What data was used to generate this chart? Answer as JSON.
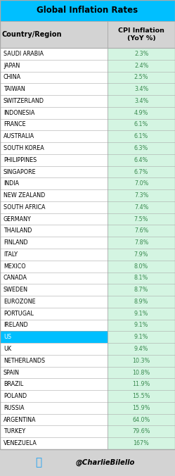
{
  "title": "Global Inflation Rates",
  "col1_header": "Country/Region",
  "col2_header": "CPI Inflation\n(YoY %)",
  "rows": [
    [
      "SAUDI ARABIA",
      "2.3%"
    ],
    [
      "JAPAN",
      "2.4%"
    ],
    [
      "CHINA",
      "2.5%"
    ],
    [
      "TAIWAN",
      "3.4%"
    ],
    [
      "SWITZERLAND",
      "3.4%"
    ],
    [
      "INDONESIA",
      "4.9%"
    ],
    [
      "FRANCE",
      "6.1%"
    ],
    [
      "AUSTRALIA",
      "6.1%"
    ],
    [
      "SOUTH KOREA",
      "6.3%"
    ],
    [
      "PHILIPPINES",
      "6.4%"
    ],
    [
      "SINGAPORE",
      "6.7%"
    ],
    [
      "INDIA",
      "7.0%"
    ],
    [
      "NEW ZEALAND",
      "7.3%"
    ],
    [
      "SOUTH AFRICA",
      "7.4%"
    ],
    [
      "GERMANY",
      "7.5%"
    ],
    [
      "THAILAND",
      "7.6%"
    ],
    [
      "FINLAND",
      "7.8%"
    ],
    [
      "ITALY",
      "7.9%"
    ],
    [
      "MEXICO",
      "8.0%"
    ],
    [
      "CANADA",
      "8.1%"
    ],
    [
      "SWEDEN",
      "8.7%"
    ],
    [
      "EUROZONE",
      "8.9%"
    ],
    [
      "PORTUGAL",
      "9.1%"
    ],
    [
      "IRELAND",
      "9.1%"
    ],
    [
      "US",
      "9.1%"
    ],
    [
      "UK",
      "9.4%"
    ],
    [
      "NETHERLANDS",
      "10.3%"
    ],
    [
      "SPAIN",
      "10.8%"
    ],
    [
      "BRAZIL",
      "11.9%"
    ],
    [
      "POLAND",
      "15.5%"
    ],
    [
      "RUSSIA",
      "15.9%"
    ],
    [
      "ARGENTINA",
      "64.0%"
    ],
    [
      "TURKEY",
      "79.6%"
    ],
    [
      "VENEZUELA",
      "167%"
    ]
  ],
  "title_bg": "#00bfff",
  "title_color": "#000000",
  "header_bg": "#d3d3d3",
  "header_color": "#000000",
  "row_col1_bg": "#ffffff",
  "col2_bg": "#d4f5e2",
  "highlight_row": "US",
  "highlight_bg": "#00bfff",
  "highlight_text_color": "#ffffff",
  "border_color": "#aaaaaa",
  "twitter_color": "#1da1f2",
  "footer_bg": "#d3d3d3",
  "footer_text": "@CharlieBilello",
  "col2_text_color": "#3a8a50",
  "col_split": 0.615
}
